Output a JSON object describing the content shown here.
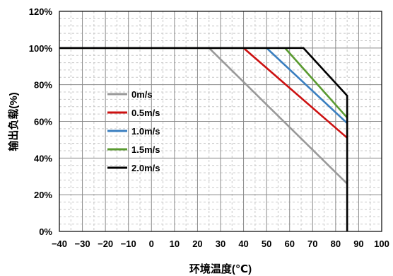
{
  "chart_data": {
    "type": "line",
    "xlabel": "环境温度(℃)",
    "ylabel": "输出负载(%)",
    "xlim": [
      -40,
      100
    ],
    "ylim": [
      0,
      120
    ],
    "x_ticks": [
      -40,
      -30,
      -20,
      -10,
      0,
      10,
      20,
      30,
      40,
      50,
      60,
      70,
      80,
      90,
      100
    ],
    "x_tick_labels": [
      "−40",
      "−30",
      "−20",
      "−10",
      "0",
      "10",
      "20",
      "30",
      "40",
      "50",
      "60",
      "70",
      "80",
      "90",
      "100"
    ],
    "y_ticks": [
      0,
      20,
      40,
      60,
      80,
      100,
      120
    ],
    "y_tick_labels": [
      "0%",
      "20%",
      "40%",
      "60%",
      "80%",
      "100%",
      "120%"
    ],
    "grid": true,
    "legend_position": "left-center",
    "series": [
      {
        "name": "0m/s",
        "color": "#999999",
        "x": [
          -40,
          25,
          85
        ],
        "y": [
          100,
          100,
          26
        ]
      },
      {
        "name": "0.5m/s",
        "color": "#cc1111",
        "x": [
          -40,
          40,
          85
        ],
        "y": [
          100,
          100,
          51
        ]
      },
      {
        "name": "1.0m/s",
        "color": "#3a7fc0",
        "x": [
          -40,
          50,
          85
        ],
        "y": [
          100,
          100,
          59
        ]
      },
      {
        "name": "1.5m/s",
        "color": "#5a9a30",
        "x": [
          -40,
          58,
          85
        ],
        "y": [
          100,
          100,
          62
        ]
      },
      {
        "name": "2.0m/s",
        "color": "#000000",
        "x": [
          -40,
          66,
          85,
          85,
          85
        ],
        "y": [
          100,
          100,
          74,
          0,
          0
        ]
      }
    ]
  }
}
